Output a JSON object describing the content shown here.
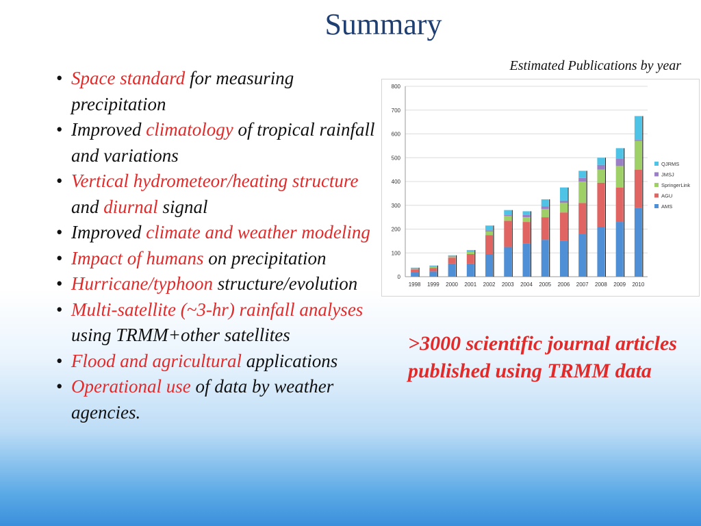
{
  "title": "Summary",
  "bullets": [
    {
      "segments": [
        {
          "text": "Space standard",
          "red": true
        },
        {
          "text": " for measuring precipitation",
          "red": false
        }
      ]
    },
    {
      "segments": [
        {
          "text": "Improved ",
          "red": false
        },
        {
          "text": "climatology",
          "red": true
        },
        {
          "text": " of tropical rainfall and variations",
          "red": false
        }
      ]
    },
    {
      "segments": [
        {
          "text": "Vertical hydrometeor/heating structure",
          "red": true
        },
        {
          "text": " and ",
          "red": false
        },
        {
          "text": "diurnal",
          "red": true
        },
        {
          "text": " signal",
          "red": false
        }
      ]
    },
    {
      "segments": [
        {
          "text": "Improved ",
          "red": false
        },
        {
          "text": "climate and weather modeling",
          "red": true
        }
      ]
    },
    {
      "segments": [
        {
          "text": "Impact of humans",
          "red": true
        },
        {
          "text": " on precipitation",
          "red": false
        }
      ]
    },
    {
      "segments": [
        {
          "text": "Hurricane/typhoon",
          "red": true
        },
        {
          "text": " structure/evolution",
          "red": false
        }
      ]
    },
    {
      "segments": [
        {
          "text": "Multi-satellite (~3-hr) rainfall analyses",
          "red": true
        },
        {
          "text": " using TRMM+other satellites",
          "red": false
        }
      ]
    },
    {
      "segments": [
        {
          "text": "Flood and agricultural",
          "red": true
        },
        {
          "text": " applications",
          "red": false
        }
      ]
    },
    {
      "segments": [
        {
          "text": "Operational use",
          "red": true
        },
        {
          "text": " of data by weather agencies.",
          "red": false
        }
      ]
    }
  ],
  "bullet_symbol": "•",
  "callout": ">3000 scientific journal articles published using TRMM data",
  "chart_data": {
    "type": "bar",
    "stacked": true,
    "title": "Estimated Publications by year",
    "categories": [
      "1998",
      "1999",
      "2000",
      "2001",
      "2002",
      "2003",
      "2004",
      "2005",
      "2006",
      "2007",
      "2008",
      "2009",
      "2010"
    ],
    "series": [
      {
        "name": "AMS",
        "color": "#4f8fd6",
        "values": [
          20,
          22,
          55,
          55,
          95,
          125,
          140,
          155,
          150,
          180,
          210,
          230,
          290
        ]
      },
      {
        "name": "AGU",
        "color": "#e06462",
        "values": [
          10,
          15,
          25,
          40,
          80,
          110,
          90,
          95,
          120,
          130,
          185,
          145,
          160
        ]
      },
      {
        "name": "SpringerLink",
        "color": "#9fd067",
        "values": [
          3,
          5,
          5,
          10,
          15,
          20,
          20,
          35,
          40,
          90,
          55,
          90,
          120
        ]
      },
      {
        "name": "JMSJ",
        "color": "#9b7fc5",
        "values": [
          2,
          2,
          2,
          2,
          5,
          5,
          10,
          10,
          10,
          15,
          20,
          30,
          5
        ]
      },
      {
        "name": "QJRMS",
        "color": "#4ec3e6",
        "values": [
          3,
          3,
          3,
          5,
          20,
          20,
          15,
          30,
          55,
          30,
          30,
          45,
          100
        ]
      }
    ],
    "ylim": [
      0,
      800
    ],
    "yticks": [
      0,
      100,
      200,
      300,
      400,
      500,
      600,
      700,
      800
    ],
    "grid": true,
    "legend_position": "right",
    "legend_order": [
      "QJRMS",
      "JMSJ",
      "SpringerLink",
      "AGU",
      "AMS"
    ]
  }
}
